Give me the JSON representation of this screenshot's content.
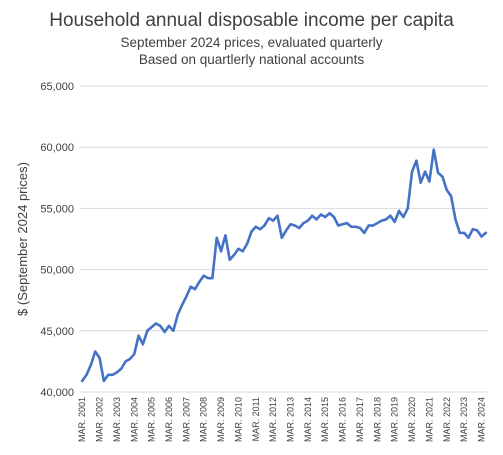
{
  "chart_data": {
    "type": "line",
    "title": "Household annual disposable income per capita",
    "subtitles": [
      "September 2024 prices, evaluated quarterly",
      "Based on quartlerly national accounts"
    ],
    "xlabel": "",
    "ylabel": "$ (September  2024 prices)",
    "ylim": [
      40000,
      65000
    ],
    "yticks": [
      "40,000",
      "45,000",
      "50,000",
      "55,000",
      "60,000",
      "65,000"
    ],
    "ytick_values": [
      40000,
      45000,
      50000,
      55000,
      60000,
      65000
    ],
    "xticks": [
      "MAR. 2001",
      "MAR. 2002",
      "MAR. 2003",
      "MAR. 2004",
      "MAR. 2005",
      "MAR. 2006",
      "MAR. 2007",
      "MAR. 2008",
      "MAR. 2009",
      "MAR. 2010",
      "MAR. 2011",
      "MAR. 2012",
      "MAR. 2013",
      "MAR. 2014",
      "MAR. 2015",
      "MAR. 2016",
      "MAR. 2017",
      "MAR. 2018",
      "MAR. 2019",
      "MAR. 2020",
      "MAR. 2021",
      "MAR. 2022",
      "MAR. 2023",
      "MAR. 2024"
    ],
    "grid": "horizontal",
    "legend": "none",
    "line_color": "#4472C4",
    "series": [
      {
        "x_start": "MAR. 2001",
        "frequency": "quarterly",
        "values": [
          40900,
          41400,
          42200,
          43300,
          42800,
          40900,
          41400,
          41400,
          41600,
          41900,
          42500,
          42700,
          43100,
          44600,
          43900,
          45000,
          45300,
          45600,
          45400,
          44900,
          45400,
          45000,
          46300,
          47100,
          47800,
          48600,
          48400,
          49000,
          49500,
          49300,
          49300,
          52600,
          51500,
          52800,
          50800,
          51200,
          51700,
          51500,
          52100,
          53100,
          53500,
          53300,
          53600,
          54200,
          54000,
          54400,
          52600,
          53200,
          53700,
          53600,
          53400,
          53800,
          54000,
          54400,
          54100,
          54500,
          54300,
          54600,
          54300,
          53600,
          53700,
          53800,
          53500,
          53500,
          53400,
          53000,
          53600,
          53600,
          53800,
          54000,
          54100,
          54400,
          53900,
          54800,
          54300,
          55000,
          58000,
          58900,
          57100,
          58000,
          57200,
          59800,
          57900,
          57600,
          56500,
          56000,
          54100,
          53000,
          53000,
          52600,
          53300,
          53200,
          52700,
          53000
        ]
      }
    ]
  }
}
